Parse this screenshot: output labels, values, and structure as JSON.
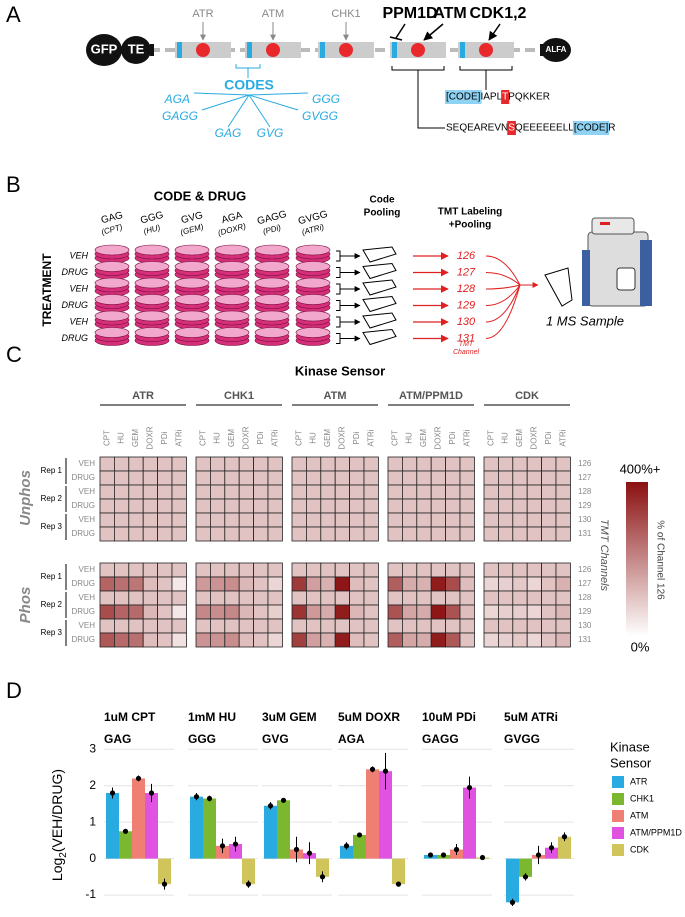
{
  "panel_labels": [
    "A",
    "B",
    "C",
    "D"
  ],
  "panel_a": {
    "construct": [
      "GFP",
      "TE",
      "ALFA"
    ],
    "sensor_labels": [
      "ATR",
      "ATM",
      "CHK1"
    ],
    "bold_labels": [
      "PPM1D",
      "ATM",
      "CDK1,2"
    ],
    "codes_title": "CODES",
    "codes": [
      "AGA",
      "GGG",
      "GAGG",
      "GVGG",
      "GAG",
      "GVG"
    ],
    "peptide1": [
      "[CODE]",
      "IAPL",
      "T",
      "PQKKER"
    ],
    "peptide2": [
      "SEQEAREVN",
      "S",
      "QEEEEEELL",
      "[CODE]",
      "R"
    ]
  },
  "panel_b": {
    "title": "CODE & DRUG",
    "side_label": "TREATMENT",
    "codes": [
      "GAG",
      "GGG",
      "GVG",
      "AGA",
      "GAGG",
      "GVGG"
    ],
    "drugs": [
      "(CPT)",
      "(HU)",
      "(GEM)",
      "(DOXR)",
      "(PDi)",
      "(ATRi)"
    ],
    "rows": [
      "VEH",
      "DRUG",
      "VEH",
      "DRUG",
      "VEH",
      "DRUG"
    ],
    "pooling": [
      "Code",
      "Pooling"
    ],
    "tmt_title": [
      "TMT Labeling",
      "+Pooling"
    ],
    "channels": [
      "126",
      "127",
      "128",
      "129",
      "130",
      "131"
    ],
    "channel_caption": [
      "TMT",
      "Channel"
    ],
    "sample": "1 MS Sample"
  },
  "chart_data": [
    {
      "type": "heatmap",
      "title": "Kinase Sensor",
      "groups": [
        "ATR",
        "CHK1",
        "ATM",
        "ATM/PPM1D",
        "CDK"
      ],
      "drugs": [
        "CPT",
        "HU",
        "GEM",
        "DOXR",
        "PDi",
        "ATRi"
      ],
      "sections": [
        "Unphos",
        "Phos"
      ],
      "reps": [
        "Rep 1",
        "Rep 2",
        "Rep 3"
      ],
      "conditions": [
        "VEH",
        "DRUG"
      ],
      "channels": [
        "126",
        "127",
        "128",
        "129",
        "130",
        "131"
      ],
      "right_label": "TMT Channels",
      "colorbar_label": "% of Channel 126",
      "zlim": [
        0,
        400
      ],
      "zticks": [
        {
          "value": 400,
          "label": "400%+"
        },
        {
          "value": 0,
          "label": "0%"
        }
      ],
      "colors": [
        "#ffffff",
        "#8b1010"
      ],
      "values": [
        [
          100,
          100,
          100,
          100,
          100,
          100,
          100,
          100,
          100,
          100,
          100,
          100,
          100,
          100,
          100,
          100,
          100,
          100,
          100,
          100,
          100,
          100,
          100,
          100,
          100,
          100,
          100,
          100,
          100,
          100
        ],
        [
          100,
          100,
          100,
          100,
          100,
          100,
          100,
          100,
          100,
          100,
          100,
          100,
          100,
          100,
          100,
          100,
          100,
          100,
          100,
          100,
          100,
          100,
          100,
          100,
          100,
          100,
          100,
          100,
          100,
          100
        ],
        [
          100,
          100,
          100,
          100,
          100,
          100,
          100,
          100,
          100,
          100,
          100,
          100,
          100,
          100,
          100,
          100,
          100,
          100,
          100,
          100,
          100,
          100,
          100,
          100,
          100,
          100,
          100,
          100,
          100,
          100
        ],
        [
          100,
          100,
          100,
          100,
          100,
          100,
          100,
          100,
          100,
          100,
          100,
          100,
          100,
          100,
          100,
          100,
          100,
          100,
          100,
          100,
          100,
          100,
          100,
          100,
          100,
          100,
          100,
          100,
          100,
          100
        ],
        [
          100,
          100,
          100,
          100,
          100,
          100,
          100,
          100,
          100,
          100,
          100,
          100,
          100,
          100,
          100,
          100,
          100,
          100,
          100,
          100,
          100,
          100,
          100,
          100,
          100,
          100,
          100,
          100,
          100,
          100
        ],
        [
          100,
          100,
          100,
          100,
          100,
          100,
          100,
          100,
          100,
          100,
          100,
          100,
          100,
          100,
          100,
          100,
          100,
          100,
          100,
          100,
          100,
          100,
          100,
          100,
          100,
          100,
          100,
          100,
          100,
          100
        ],
        [
          100,
          100,
          100,
          100,
          100,
          100,
          100,
          100,
          100,
          100,
          100,
          100,
          100,
          100,
          100,
          100,
          100,
          100,
          100,
          100,
          100,
          100,
          100,
          100,
          100,
          100,
          100,
          100,
          100,
          100
        ],
        [
          260,
          240,
          230,
          110,
          100,
          40,
          170,
          180,
          190,
          120,
          100,
          70,
          330,
          160,
          130,
          390,
          110,
          100,
          270,
          140,
          130,
          380,
          300,
          110,
          70,
          80,
          90,
          70,
          100,
          130
        ],
        [
          100,
          100,
          100,
          100,
          100,
          100,
          100,
          100,
          100,
          100,
          100,
          100,
          100,
          100,
          100,
          100,
          100,
          100,
          100,
          100,
          100,
          100,
          100,
          100,
          100,
          100,
          100,
          100,
          100,
          100
        ],
        [
          300,
          260,
          250,
          120,
          100,
          40,
          200,
          190,
          200,
          120,
          100,
          80,
          340,
          170,
          140,
          380,
          120,
          100,
          290,
          150,
          140,
          390,
          290,
          110,
          70,
          80,
          80,
          70,
          100,
          120
        ],
        [
          100,
          100,
          100,
          100,
          100,
          100,
          100,
          100,
          100,
          100,
          100,
          100,
          100,
          100,
          100,
          100,
          100,
          100,
          100,
          100,
          100,
          100,
          100,
          100,
          100,
          100,
          100,
          100,
          100,
          100
        ],
        [
          280,
          250,
          240,
          110,
          100,
          50,
          180,
          180,
          190,
          110,
          100,
          70,
          320,
          160,
          130,
          380,
          110,
          100,
          270,
          150,
          140,
          380,
          280,
          100,
          70,
          80,
          90,
          70,
          100,
          120
        ]
      ]
    },
    {
      "type": "bar",
      "categories": [
        "1uM CPT",
        "1mM HU",
        "3uM GEM",
        "5uM DOXR",
        "10uM PDi",
        "5uM ATRi"
      ],
      "codes": [
        "GAG",
        "GGG",
        "GVG",
        "AGA",
        "GAGG",
        "GVGG"
      ],
      "ylabel": [
        "Log",
        "2",
        "(VEH/DRUG)"
      ],
      "legend_title": [
        "Kinase",
        "Sensor"
      ],
      "ylim": [
        -1.3,
        3.2
      ],
      "yticks": [
        -1,
        0,
        1,
        2,
        3
      ],
      "grid": true,
      "series": [
        {
          "name": "ATR",
          "color": "#29abe2",
          "values": [
            1.8,
            1.7,
            1.45,
            0.35,
            0.1,
            -1.2
          ],
          "errors": [
            0.15,
            0.1,
            0.1,
            0.1,
            0.05,
            0.1
          ]
        },
        {
          "name": "CHK1",
          "color": "#7cb82f",
          "values": [
            0.75,
            1.65,
            1.6,
            0.65,
            0.1,
            -0.5
          ],
          "errors": [
            0.03,
            0.08,
            0.05,
            0.05,
            0.05,
            0.1
          ]
        },
        {
          "name": "ATM",
          "color": "#f07f73",
          "values": [
            2.2,
            0.35,
            0.25,
            2.45,
            0.25,
            0.1
          ],
          "errors": [
            0.08,
            0.2,
            0.35,
            0.08,
            0.15,
            0.25
          ]
        },
        {
          "name": "ATM/PPM1D",
          "color": "#e052e0",
          "values": [
            1.8,
            0.4,
            0.15,
            2.4,
            1.95,
            0.3
          ],
          "errors": [
            0.25,
            0.2,
            0.3,
            0.5,
            0.3,
            0.15
          ]
        },
        {
          "name": "CDK",
          "color": "#cfc55a",
          "values": [
            -0.7,
            -0.7,
            -0.5,
            -0.7,
            0.03,
            0.6
          ],
          "errors": [
            0.15,
            0.1,
            0.15,
            0.05,
            0.02,
            0.12
          ]
        }
      ]
    }
  ]
}
